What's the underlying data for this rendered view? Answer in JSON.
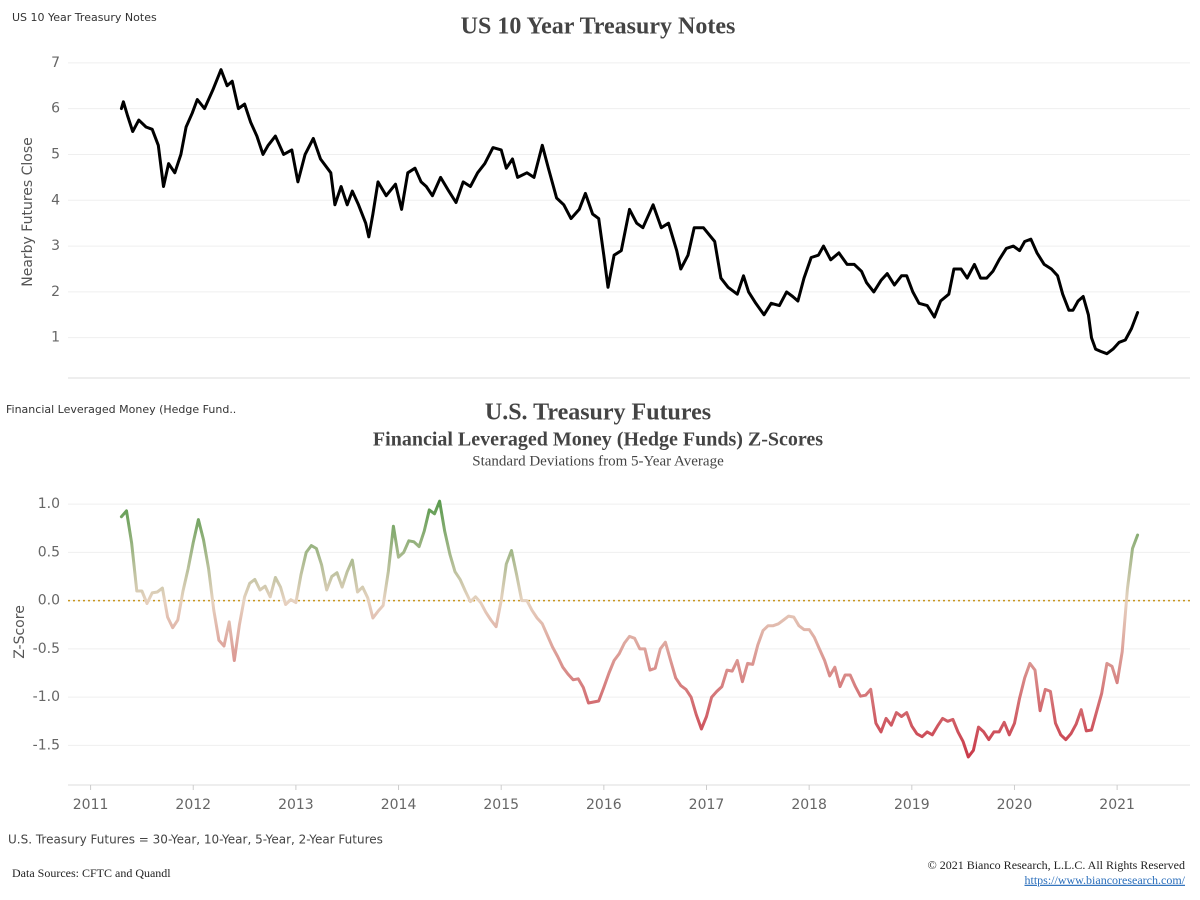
{
  "chart_data": [
    {
      "type": "line",
      "sheet_label": "US 10 Year Treasury Notes",
      "title": "US 10 Year Treasury Notes",
      "y_label": "Nearby Futures Close",
      "xlim": [
        2010.78,
        2021.71
      ],
      "ylim": [
        0.12,
        7.28
      ],
      "yticks": [
        1,
        2,
        3,
        4,
        5,
        6,
        7
      ],
      "grid": true,
      "color": "#000000",
      "x": [
        2011.3,
        2011.32,
        2011.36,
        2011.41,
        2011.47,
        2011.54,
        2011.6,
        2011.66,
        2011.71,
        2011.76,
        2011.82,
        2011.88,
        2011.93,
        2011.99,
        2012.04,
        2012.11,
        2012.19,
        2012.27,
        2012.33,
        2012.38,
        2012.44,
        2012.5,
        2012.56,
        2012.62,
        2012.68,
        2012.73,
        2012.8,
        2012.88,
        2012.96,
        2013.02,
        2013.09,
        2013.17,
        2013.24,
        2013.34,
        2013.38,
        2013.44,
        2013.5,
        2013.55,
        2013.61,
        2013.68,
        2013.71,
        2013.75,
        2013.8,
        2013.88,
        2013.97,
        2014.03,
        2014.09,
        2014.16,
        2014.22,
        2014.27,
        2014.33,
        2014.41,
        2014.49,
        2014.56,
        2014.63,
        2014.7,
        2014.77,
        2014.84,
        2014.92,
        2015.0,
        2015.05,
        2015.11,
        2015.16,
        2015.25,
        2015.32,
        2015.4,
        2015.46,
        2015.54,
        2015.61,
        2015.68,
        2015.76,
        2015.82,
        2015.89,
        2015.95,
        2016.0,
        2016.04,
        2016.1,
        2016.17,
        2016.25,
        2016.32,
        2016.38,
        2016.48,
        2016.56,
        2016.63,
        2016.71,
        2016.75,
        2016.82,
        2016.88,
        2016.97,
        2017.08,
        2017.14,
        2017.21,
        2017.3,
        2017.36,
        2017.41,
        2017.48,
        2017.56,
        2017.63,
        2017.71,
        2017.78,
        2017.84,
        2017.89,
        2017.95,
        2018.02,
        2018.09,
        2018.14,
        2018.21,
        2018.29,
        2018.37,
        2018.44,
        2018.51,
        2018.56,
        2018.63,
        2018.7,
        2018.76,
        2018.83,
        2018.9,
        2018.95,
        2019.01,
        2019.07,
        2019.15,
        2019.22,
        2019.28,
        2019.36,
        2019.41,
        2019.48,
        2019.54,
        2019.61,
        2019.67,
        2019.73,
        2019.79,
        2019.85,
        2019.92,
        2019.99,
        2020.05,
        2020.1,
        2020.16,
        2020.22,
        2020.29,
        2020.36,
        2020.42,
        2020.47,
        2020.53,
        2020.57,
        2020.62,
        2020.67,
        2020.72,
        2020.75,
        2020.79,
        2020.84,
        2020.9,
        2020.96,
        2021.02,
        2021.08,
        2021.14,
        2021.2
      ],
      "values": [
        6.0,
        6.15,
        5.85,
        5.5,
        5.75,
        5.6,
        5.55,
        5.2,
        4.3,
        4.8,
        4.6,
        5.0,
        5.6,
        5.9,
        6.2,
        6.0,
        6.4,
        6.85,
        6.5,
        6.6,
        6.0,
        6.1,
        5.7,
        5.4,
        5.0,
        5.2,
        5.4,
        5.0,
        5.1,
        4.4,
        5.0,
        5.35,
        4.9,
        4.6,
        3.9,
        4.3,
        3.9,
        4.2,
        3.9,
        3.5,
        3.2,
        3.7,
        4.4,
        4.1,
        4.35,
        3.8,
        4.6,
        4.7,
        4.4,
        4.3,
        4.1,
        4.5,
        4.2,
        3.95,
        4.4,
        4.3,
        4.6,
        4.8,
        5.15,
        5.1,
        4.7,
        4.9,
        4.5,
        4.6,
        4.5,
        5.2,
        4.7,
        4.05,
        3.9,
        3.6,
        3.8,
        4.15,
        3.7,
        3.6,
        2.8,
        2.1,
        2.8,
        2.9,
        3.8,
        3.5,
        3.4,
        3.9,
        3.4,
        3.5,
        2.9,
        2.5,
        2.8,
        3.4,
        3.4,
        3.1,
        2.3,
        2.1,
        1.95,
        2.35,
        2.0,
        1.75,
        1.5,
        1.75,
        1.7,
        2.0,
        1.9,
        1.8,
        2.3,
        2.75,
        2.8,
        3.0,
        2.7,
        2.85,
        2.6,
        2.6,
        2.45,
        2.2,
        2.0,
        2.25,
        2.4,
        2.15,
        2.35,
        2.35,
        2.0,
        1.75,
        1.7,
        1.45,
        1.8,
        1.95,
        2.5,
        2.5,
        2.3,
        2.6,
        2.3,
        2.3,
        2.45,
        2.7,
        2.95,
        3.0,
        2.9,
        3.1,
        3.15,
        2.85,
        2.6,
        2.5,
        2.35,
        1.95,
        1.6,
        1.6,
        1.8,
        1.9,
        1.5,
        1.0,
        0.75,
        0.7,
        0.65,
        0.75,
        0.9,
        0.95,
        1.2,
        1.55
      ]
    },
    {
      "type": "line",
      "sheet_label": "Financial Leveraged Money (Hedge Fund..",
      "title": "U.S. Treasury Futures",
      "subtitle": "Financial Leveraged Money (Hedge Funds) Z-Scores",
      "subtitle_2": "Standard Deviations from 5-Year Average",
      "y_label": "Z-Score",
      "xlim": [
        2010.78,
        2021.71
      ],
      "xticks": [
        2011,
        2012,
        2013,
        2014,
        2015,
        2016,
        2017,
        2018,
        2019,
        2020,
        2021
      ],
      "ylim": [
        -1.91,
        1.25
      ],
      "yticks": [
        {
          "value": 1,
          "label": "1.0"
        },
        0.5,
        {
          "value": 0,
          "label": "0.0"
        },
        -0.5,
        {
          "value": -1,
          "label": "-1.0"
        },
        -1.5
      ],
      "grid": true,
      "colors": {
        "positive": "#3d8f36",
        "zero": "#e6d2c0",
        "negative": "#c41e34"
      },
      "reference_line": {
        "value": 0,
        "color": "#c8961e",
        "style": "dotted"
      },
      "x": [
        2011.3,
        2011.35,
        2011.4,
        2011.45,
        2011.5,
        2011.55,
        2011.6,
        2011.65,
        2011.7,
        2011.75,
        2011.8,
        2011.85,
        2011.9,
        2011.95,
        2012.0,
        2012.05,
        2012.1,
        2012.15,
        2012.2,
        2012.25,
        2012.3,
        2012.35,
        2012.4,
        2012.45,
        2012.5,
        2012.55,
        2012.6,
        2012.65,
        2012.7,
        2012.75,
        2012.8,
        2012.85,
        2012.9,
        2012.95,
        2013.0,
        2013.05,
        2013.1,
        2013.15,
        2013.2,
        2013.25,
        2013.3,
        2013.35,
        2013.4,
        2013.45,
        2013.5,
        2013.55,
        2013.6,
        2013.65,
        2013.7,
        2013.75,
        2013.8,
        2013.85,
        2013.9,
        2013.95,
        2014.0,
        2014.05,
        2014.1,
        2014.15,
        2014.2,
        2014.25,
        2014.3,
        2014.35,
        2014.4,
        2014.45,
        2014.5,
        2014.55,
        2014.6,
        2014.65,
        2014.7,
        2014.75,
        2014.8,
        2014.85,
        2014.9,
        2014.95,
        2015.0,
        2015.05,
        2015.1,
        2015.15,
        2015.2,
        2015.25,
        2015.3,
        2015.35,
        2015.4,
        2015.45,
        2015.5,
        2015.55,
        2015.6,
        2015.65,
        2015.7,
        2015.75,
        2015.8,
        2015.85,
        2015.9,
        2015.95,
        2016.0,
        2016.05,
        2016.1,
        2016.15,
        2016.2,
        2016.25,
        2016.3,
        2016.35,
        2016.4,
        2016.45,
        2016.5,
        2016.55,
        2016.6,
        2016.65,
        2016.7,
        2016.75,
        2016.8,
        2016.85,
        2016.9,
        2016.95,
        2017.0,
        2017.05,
        2017.1,
        2017.15,
        2017.2,
        2017.25,
        2017.3,
        2017.35,
        2017.4,
        2017.45,
        2017.5,
        2017.55,
        2017.6,
        2017.65,
        2017.7,
        2017.75,
        2017.8,
        2017.85,
        2017.9,
        2017.95,
        2018.0,
        2018.05,
        2018.1,
        2018.15,
        2018.2,
        2018.25,
        2018.3,
        2018.35,
        2018.4,
        2018.45,
        2018.5,
        2018.55,
        2018.6,
        2018.65,
        2018.7,
        2018.75,
        2018.8,
        2018.85,
        2018.9,
        2018.95,
        2019.0,
        2019.05,
        2019.1,
        2019.15,
        2019.2,
        2019.25,
        2019.3,
        2019.35,
        2019.4,
        2019.45,
        2019.5,
        2019.55,
        2019.6,
        2019.65,
        2019.7,
        2019.75,
        2019.8,
        2019.85,
        2019.9,
        2019.95,
        2020.0,
        2020.05,
        2020.1,
        2020.15,
        2020.2,
        2020.25,
        2020.3,
        2020.35,
        2020.4,
        2020.45,
        2020.5,
        2020.55,
        2020.6,
        2020.65,
        2020.7,
        2020.75,
        2020.8,
        2020.85,
        2020.9,
        2020.95,
        2021.0,
        2021.05,
        2021.1,
        2021.15,
        2021.2
      ],
      "values": [
        0.87,
        0.93,
        0.6,
        0.1,
        0.1,
        -0.03,
        0.08,
        0.09,
        0.13,
        -0.17,
        -0.28,
        -0.2,
        0.1,
        0.33,
        0.6,
        0.84,
        0.63,
        0.33,
        -0.1,
        -0.41,
        -0.47,
        -0.22,
        -0.62,
        -0.25,
        0.04,
        0.18,
        0.22,
        0.11,
        0.15,
        0.04,
        0.24,
        0.14,
        -0.04,
        0.01,
        -0.02,
        0.27,
        0.5,
        0.57,
        0.54,
        0.37,
        0.11,
        0.25,
        0.29,
        0.14,
        0.3,
        0.42,
        0.09,
        0.14,
        0.03,
        -0.18,
        -0.11,
        -0.05,
        0.3,
        0.77,
        0.45,
        0.5,
        0.62,
        0.61,
        0.56,
        0.72,
        0.94,
        0.9,
        1.03,
        0.72,
        0.48,
        0.3,
        0.22,
        0.1,
        -0.01,
        0.04,
        -0.02,
        -0.12,
        -0.2,
        -0.27,
        0.0,
        0.38,
        0.52,
        0.27,
        0.0,
        0.0,
        -0.1,
        -0.18,
        -0.24,
        -0.36,
        -0.48,
        -0.58,
        -0.69,
        -0.76,
        -0.82,
        -0.81,
        -0.9,
        -1.06,
        -1.05,
        -1.04,
        -0.9,
        -0.75,
        -0.62,
        -0.55,
        -0.44,
        -0.37,
        -0.39,
        -0.5,
        -0.5,
        -0.72,
        -0.7,
        -0.5,
        -0.43,
        -0.62,
        -0.8,
        -0.88,
        -0.92,
        -1.0,
        -1.18,
        -1.33,
        -1.2,
        -1.0,
        -0.94,
        -0.89,
        -0.72,
        -0.73,
        -0.62,
        -0.84,
        -0.65,
        -0.66,
        -0.46,
        -0.31,
        -0.26,
        -0.26,
        -0.24,
        -0.2,
        -0.16,
        -0.17,
        -0.26,
        -0.3,
        -0.3,
        -0.38,
        -0.5,
        -0.62,
        -0.78,
        -0.69,
        -0.89,
        -0.77,
        -0.77,
        -0.89,
        -0.99,
        -0.98,
        -0.92,
        -1.27,
        -1.36,
        -1.22,
        -1.29,
        -1.16,
        -1.2,
        -1.16,
        -1.3,
        -1.38,
        -1.41,
        -1.36,
        -1.39,
        -1.3,
        -1.22,
        -1.25,
        -1.23,
        -1.36,
        -1.46,
        -1.62,
        -1.55,
        -1.31,
        -1.36,
        -1.44,
        -1.36,
        -1.36,
        -1.26,
        -1.39,
        -1.27,
        -1.01,
        -0.8,
        -0.65,
        -0.72,
        -1.14,
        -0.92,
        -0.94,
        -1.27,
        -1.39,
        -1.44,
        -1.38,
        -1.28,
        -1.13,
        -1.35,
        -1.34,
        -1.15,
        -0.96,
        -0.65,
        -0.68,
        -0.85,
        -0.53,
        0.12,
        0.54,
        0.68
      ]
    }
  ],
  "footer": {
    "note": "U.S. Treasury Futures = 30-Year, 10-Year, 5-Year, 2-Year Futures",
    "sources": "Data Sources: CFTC and Quandl",
    "copyright": "© 2021 Bianco Research, L.L.C. All Rights Reserved",
    "link": "https://www.biancoresearch.com/"
  }
}
